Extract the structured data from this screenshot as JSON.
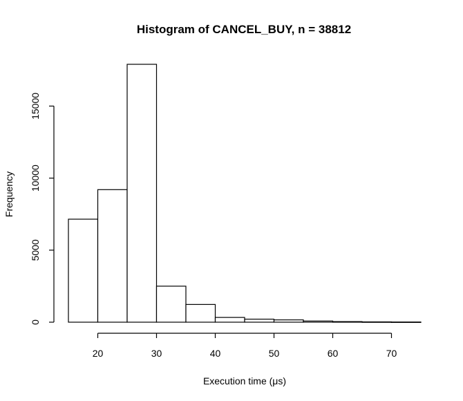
{
  "chart_data": {
    "type": "bar",
    "title": "Histogram of CANCEL_BUY, n = 38812",
    "xlabel": "Execution time (μs)",
    "ylabel": "Frequency",
    "bins": [
      {
        "from": 15,
        "to": 20,
        "value": 7150
      },
      {
        "from": 20,
        "to": 25,
        "value": 9200
      },
      {
        "from": 25,
        "to": 30,
        "value": 17900
      },
      {
        "from": 30,
        "to": 35,
        "value": 2500
      },
      {
        "from": 35,
        "to": 40,
        "value": 1230
      },
      {
        "from": 40,
        "to": 45,
        "value": 330
      },
      {
        "from": 45,
        "to": 50,
        "value": 210
      },
      {
        "from": 50,
        "to": 55,
        "value": 160
      },
      {
        "from": 55,
        "to": 60,
        "value": 80
      },
      {
        "from": 60,
        "to": 65,
        "value": 40
      },
      {
        "from": 65,
        "to": 70,
        "value": 20
      },
      {
        "from": 70,
        "to": 75,
        "value": 12
      }
    ],
    "x_ticks": [
      20,
      30,
      40,
      50,
      60,
      70
    ],
    "y_ticks": [
      0,
      5000,
      10000,
      15000
    ],
    "xlim": [
      15,
      75
    ],
    "ylim": [
      0,
      17900
    ],
    "grid": false
  }
}
